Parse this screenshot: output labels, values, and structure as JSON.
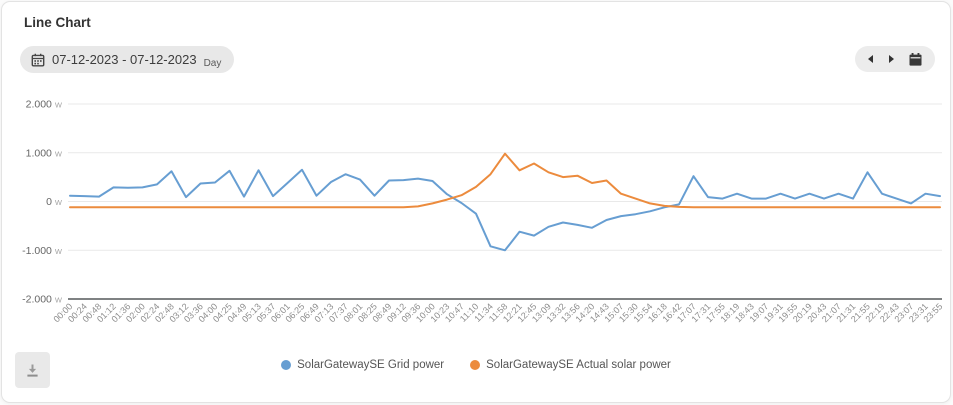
{
  "header": {
    "title": "Line Chart",
    "date_range": "07-12-2023 - 07-12-2023",
    "period": "Day"
  },
  "icons": {
    "date_calendar": "calendar-outline",
    "nav_prev": "triangle-left",
    "nav_next": "triangle-right",
    "nav_calendar": "calendar-solid",
    "download": "download-arrow-to-line"
  },
  "colors": {
    "grid_power": "#679ed2",
    "solar_power": "#ec8b3d",
    "gridline": "#e9e9e9",
    "axis_line": "#55585a",
    "pill_bg": "#e8e8e8"
  },
  "chart_data": {
    "type": "line",
    "title": "",
    "unit": "W",
    "ylim": [
      -2000,
      2000
    ],
    "y_tick_values": [
      2000,
      1000,
      0,
      -1000,
      -2000
    ],
    "y_tick_labels": [
      "2.000",
      "1.000",
      "0",
      "-1.000",
      "-2.000"
    ],
    "grid": true,
    "legend_position": "bottom",
    "x": [
      "00:00",
      "00:24",
      "00:48",
      "01:12",
      "01:36",
      "02:00",
      "02:24",
      "02:48",
      "03:12",
      "03:36",
      "04:00",
      "04:25",
      "04:49",
      "05:13",
      "05:37",
      "06:01",
      "06:25",
      "06:49",
      "07:13",
      "07:37",
      "08:01",
      "08:25",
      "08:49",
      "09:12",
      "09:36",
      "10:00",
      "10:23",
      "10:47",
      "11:10",
      "11:34",
      "11:58",
      "12:21",
      "12:45",
      "13:09",
      "13:32",
      "13:56",
      "14:20",
      "14:43",
      "15:07",
      "15:30",
      "15:54",
      "16:18",
      "16:42",
      "17:07",
      "17:31",
      "17:55",
      "18:19",
      "18:43",
      "19:07",
      "19:31",
      "19:55",
      "20:19",
      "20:43",
      "21:07",
      "21:31",
      "21:55",
      "22:19",
      "22:43",
      "23:07",
      "23:31",
      "23:55"
    ],
    "series": [
      {
        "name": "SolarGatewaySE Grid power",
        "color": "#679ed2",
        "values": [
          120,
          110,
          100,
          290,
          280,
          290,
          350,
          620,
          90,
          370,
          390,
          630,
          100,
          640,
          110,
          380,
          650,
          120,
          400,
          560,
          450,
          120,
          430,
          440,
          470,
          420,
          150,
          -30,
          -250,
          -920,
          -1000,
          -620,
          -700,
          -520,
          -430,
          -480,
          -540,
          -380,
          -300,
          -260,
          -200,
          -120,
          -60,
          520,
          90,
          60,
          160,
          60,
          60,
          160,
          60,
          160,
          60,
          160,
          60,
          600,
          160,
          60,
          -40,
          160,
          110
        ]
      },
      {
        "name": "SolarGatewaySE Actual solar power",
        "color": "#ec8b3d",
        "values": [
          -120,
          -120,
          -120,
          -120,
          -120,
          -120,
          -120,
          -120,
          -120,
          -120,
          -120,
          -120,
          -120,
          -120,
          -120,
          -120,
          -120,
          -120,
          -120,
          -120,
          -120,
          -120,
          -120,
          -120,
          -100,
          -40,
          40,
          130,
          300,
          560,
          980,
          640,
          780,
          600,
          500,
          530,
          380,
          430,
          160,
          60,
          -40,
          -90,
          -110,
          -120,
          -120,
          -120,
          -120,
          -120,
          -120,
          -120,
          -120,
          -120,
          -120,
          -120,
          -120,
          -120,
          -120,
          -120,
          -120,
          -120,
          -120
        ]
      }
    ]
  }
}
